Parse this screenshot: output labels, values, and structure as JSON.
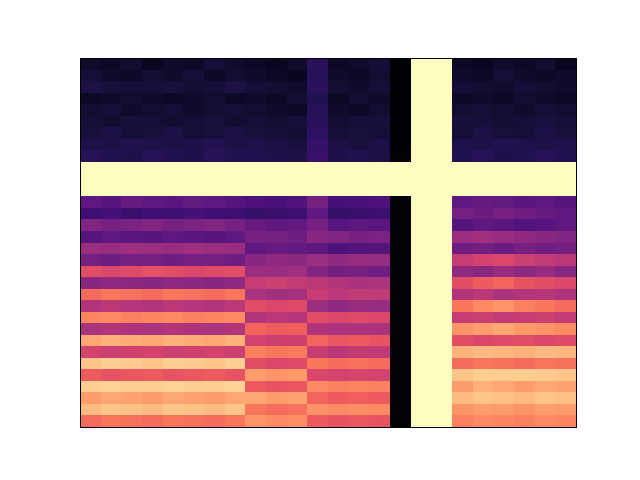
{
  "chart_data": {
    "type": "heatmap",
    "tick_labels": false,
    "cells": [
      [
        10,
        9,
        11,
        8,
        10,
        9,
        12,
        10,
        9,
        8,
        10,
        18,
        9,
        10,
        12,
        2,
        100,
        100,
        9,
        8,
        10,
        9,
        11,
        8
      ],
      [
        12,
        10,
        9,
        11,
        10,
        12,
        9,
        11,
        10,
        9,
        8,
        17,
        10,
        9,
        11,
        2,
        100,
        100,
        10,
        9,
        12,
        10,
        9,
        10
      ],
      [
        14,
        13,
        12,
        12,
        13,
        11,
        12,
        14,
        12,
        11,
        10,
        18,
        11,
        10,
        12,
        2,
        100,
        100,
        12,
        11,
        10,
        12,
        11,
        10
      ],
      [
        9,
        10,
        11,
        10,
        9,
        10,
        11,
        9,
        10,
        9,
        11,
        16,
        9,
        11,
        10,
        2,
        100,
        100,
        9,
        10,
        9,
        11,
        10,
        9
      ],
      [
        11,
        12,
        10,
        11,
        12,
        10,
        11,
        12,
        11,
        10,
        9,
        17,
        10,
        9,
        11,
        2,
        100,
        100,
        11,
        12,
        11,
        10,
        12,
        11
      ],
      [
        12,
        11,
        13,
        12,
        11,
        12,
        13,
        11,
        12,
        11,
        12,
        18,
        11,
        12,
        13,
        2,
        100,
        100,
        13,
        12,
        11,
        12,
        13,
        12
      ],
      [
        13,
        14,
        12,
        13,
        14,
        12,
        13,
        14,
        13,
        12,
        11,
        19,
        12,
        13,
        12,
        2,
        100,
        100,
        12,
        14,
        13,
        12,
        14,
        13
      ],
      [
        15,
        14,
        16,
        15,
        14,
        15,
        16,
        14,
        15,
        14,
        13,
        20,
        14,
        13,
        15,
        2,
        100,
        100,
        15,
        14,
        16,
        15,
        14,
        15
      ],
      [
        17,
        16,
        15,
        17,
        16,
        15,
        17,
        16,
        16,
        15,
        14,
        21,
        15,
        16,
        14,
        3,
        100,
        100,
        16,
        17,
        15,
        16,
        17,
        16
      ],
      [
        100,
        100,
        100,
        100,
        100,
        100,
        100,
        100,
        100,
        100,
        100,
        100,
        100,
        100,
        100,
        100,
        100,
        100,
        100,
        100,
        100,
        100,
        100,
        100
      ],
      [
        100,
        100,
        100,
        100,
        100,
        100,
        100,
        100,
        100,
        100,
        100,
        100,
        100,
        100,
        100,
        100,
        100,
        100,
        100,
        100,
        100,
        100,
        100,
        100
      ],
      [
        100,
        100,
        100,
        100,
        100,
        100,
        100,
        100,
        100,
        100,
        100,
        100,
        100,
        100,
        100,
        100,
        100,
        100,
        100,
        100,
        100,
        100,
        100,
        100
      ],
      [
        30,
        28,
        32,
        30,
        29,
        31,
        30,
        28,
        26,
        25,
        27,
        35,
        24,
        25,
        26,
        3,
        100,
        100,
        30,
        32,
        31,
        29,
        30,
        28
      ],
      [
        22,
        24,
        21,
        23,
        22,
        24,
        23,
        22,
        20,
        21,
        22,
        30,
        20,
        21,
        22,
        3,
        100,
        100,
        35,
        33,
        36,
        34,
        32,
        30
      ],
      [
        38,
        36,
        37,
        38,
        36,
        37,
        38,
        36,
        32,
        30,
        31,
        36,
        28,
        30,
        29,
        3,
        100,
        100,
        28,
        30,
        29,
        27,
        28,
        30
      ],
      [
        28,
        30,
        29,
        28,
        30,
        29,
        28,
        30,
        36,
        35,
        34,
        40,
        38,
        36,
        37,
        3,
        100,
        100,
        45,
        46,
        44,
        42,
        40,
        38
      ],
      [
        45,
        44,
        46,
        45,
        44,
        46,
        45,
        44,
        30,
        32,
        31,
        30,
        26,
        27,
        28,
        3,
        100,
        100,
        34,
        35,
        33,
        36,
        34,
        35
      ],
      [
        35,
        34,
        36,
        35,
        34,
        36,
        35,
        34,
        40,
        42,
        41,
        45,
        42,
        44,
        43,
        3,
        100,
        100,
        55,
        58,
        60,
        56,
        54,
        52
      ],
      [
        62,
        60,
        61,
        63,
        62,
        60,
        61,
        62,
        45,
        44,
        46,
        38,
        35,
        36,
        34,
        3,
        100,
        100,
        42,
        40,
        44,
        41,
        43,
        40
      ],
      [
        40,
        42,
        41,
        40,
        42,
        41,
        40,
        42,
        55,
        56,
        54,
        52,
        50,
        48,
        49,
        3,
        100,
        100,
        62,
        66,
        68,
        64,
        62,
        60
      ],
      [
        70,
        72,
        71,
        70,
        72,
        71,
        70,
        72,
        48,
        46,
        47,
        55,
        52,
        54,
        53,
        3,
        100,
        100,
        50,
        52,
        48,
        50,
        51,
        49
      ],
      [
        50,
        52,
        51,
        50,
        52,
        51,
        50,
        52,
        62,
        60,
        61,
        45,
        42,
        44,
        43,
        3,
        100,
        100,
        72,
        76,
        78,
        74,
        72,
        70
      ],
      [
        75,
        76,
        74,
        75,
        76,
        74,
        75,
        76,
        50,
        52,
        51,
        62,
        60,
        61,
        60,
        3,
        100,
        100,
        55,
        56,
        54,
        55,
        56,
        54
      ],
      [
        48,
        50,
        49,
        48,
        50,
        49,
        48,
        50,
        68,
        66,
        67,
        50,
        48,
        49,
        48,
        3,
        100,
        100,
        78,
        80,
        82,
        79,
        78,
        76
      ],
      [
        82,
        84,
        83,
        82,
        84,
        83,
        82,
        84,
        58,
        56,
        57,
        68,
        65,
        66,
        64,
        3,
        100,
        100,
        62,
        60,
        61,
        62,
        60,
        61
      ],
      [
        58,
        56,
        57,
        58,
        56,
        57,
        58,
        56,
        74,
        72,
        73,
        55,
        52,
        54,
        53,
        3,
        100,
        100,
        84,
        86,
        85,
        84,
        86,
        85
      ],
      [
        88,
        90,
        89,
        88,
        90,
        89,
        88,
        90,
        62,
        60,
        61,
        72,
        70,
        71,
        70,
        3,
        100,
        100,
        70,
        72,
        71,
        70,
        72,
        71
      ],
      [
        66,
        64,
        65,
        66,
        64,
        65,
        66,
        64,
        80,
        78,
        79,
        60,
        58,
        59,
        58,
        3,
        100,
        100,
        88,
        90,
        90,
        90,
        89,
        88
      ],
      [
        90,
        91,
        90,
        90,
        91,
        90,
        90,
        91,
        66,
        64,
        65,
        76,
        74,
        75,
        74,
        3,
        100,
        100,
        80,
        84,
        82,
        80,
        82,
        81
      ],
      [
        80,
        82,
        81,
        80,
        82,
        81,
        80,
        82,
        82,
        80,
        81,
        68,
        66,
        67,
        66,
        3,
        100,
        100,
        86,
        88,
        87,
        86,
        88,
        87
      ],
      [
        86,
        88,
        87,
        86,
        88,
        87,
        86,
        88,
        72,
        70,
        71,
        78,
        76,
        77,
        76,
        3,
        100,
        100,
        78,
        80,
        79,
        78,
        80,
        79
      ],
      [
        70,
        72,
        71,
        70,
        72,
        71,
        70,
        72,
        78,
        76,
        77,
        66,
        64,
        65,
        64,
        3,
        100,
        100,
        74,
        76,
        75,
        74,
        76,
        75
      ]
    ]
  }
}
